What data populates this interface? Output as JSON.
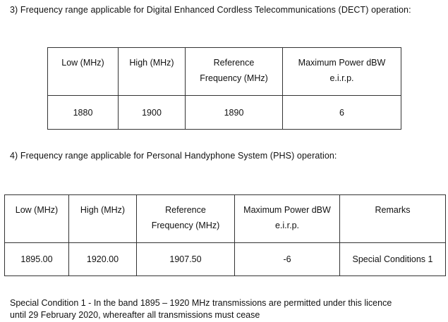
{
  "section3": {
    "heading": "3) Frequency range applicable for Digital Enhanced Cordless Telecommunications (DECT)  operation:",
    "headers": {
      "low": "Low (MHz)",
      "high": "High (MHz)",
      "ref_line1": "Reference",
      "ref_line2": "Frequency (MHz)",
      "power_line1": "Maximum Power dBW",
      "power_line2": "e.i.r.p."
    },
    "row": {
      "low": "1880",
      "high": "1900",
      "ref": "1890",
      "power": "6"
    }
  },
  "section4": {
    "heading": "4) Frequency range applicable for Personal Handyphone System (PHS)  operation:",
    "headers": {
      "low": "Low (MHz)",
      "high": "High (MHz)",
      "ref_line1": "Reference",
      "ref_line2": "Frequency (MHz)",
      "power_line1": "Maximum Power dBW",
      "power_line2": "e.i.r.p.",
      "remarks": "Remarks"
    },
    "row": {
      "low": "1895.00",
      "high": "1920.00",
      "ref": "1907.50",
      "power": "-6",
      "remarks": "Special Conditions 1"
    }
  },
  "special_condition": {
    "line1": "Special Condition 1 - In the band 1895 – 1920 MHz transmissions are permitted under this licence",
    "line2": "until 29 February 2020, whereafter all transmissions must cease"
  }
}
